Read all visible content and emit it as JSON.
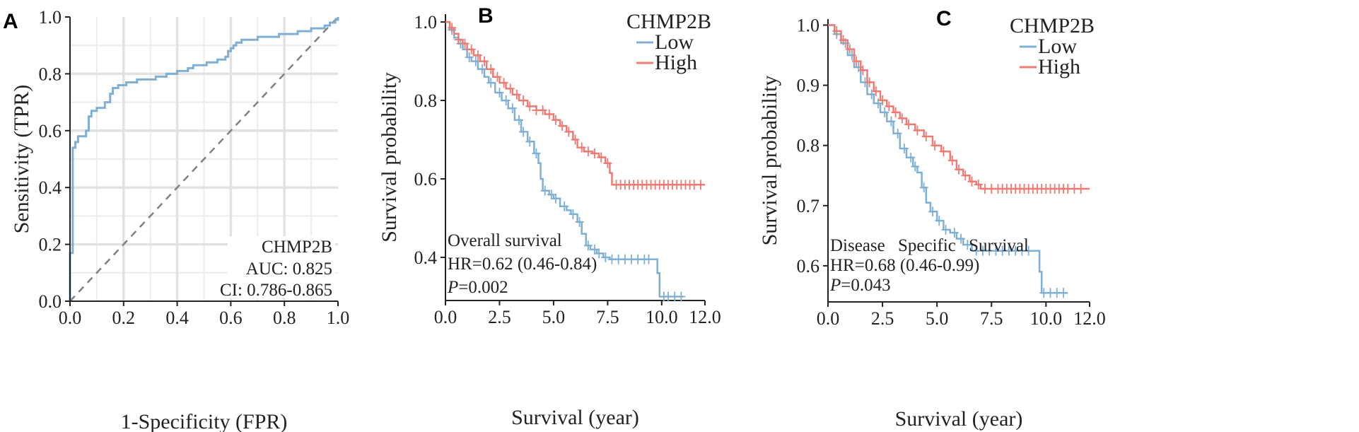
{
  "chart_data": [
    {
      "panel": "A",
      "type": "line",
      "xlabel": "1-Specificity (FPR)",
      "ylabel": "Sensitivity (TPR)",
      "xlim": [
        0,
        1
      ],
      "ylim": [
        0,
        1
      ],
      "xticks": [
        "0.0",
        "0.2",
        "0.4",
        "0.6",
        "0.8",
        "1.0"
      ],
      "yticks": [
        "0.0",
        "0.2",
        "0.4",
        "0.6",
        "0.8",
        "1.0"
      ],
      "grid": true,
      "annotations": [
        "CHMP2B",
        "AUC: 0.825",
        "CI: 0.786-0.865"
      ],
      "colors": {
        "roc": "#7fb0d3",
        "diagonal": "#808080"
      },
      "series": [
        {
          "values": [
            [
              0.0,
              0.0
            ],
            [
              0.0,
              0.17
            ],
            [
              0.01,
              0.17
            ],
            [
              0.01,
              0.54
            ],
            [
              0.02,
              0.54
            ],
            [
              0.02,
              0.56
            ],
            [
              0.03,
              0.56
            ],
            [
              0.03,
              0.58
            ],
            [
              0.06,
              0.58
            ],
            [
              0.06,
              0.6
            ],
            [
              0.07,
              0.6
            ],
            [
              0.07,
              0.65
            ],
            [
              0.08,
              0.65
            ],
            [
              0.08,
              0.67
            ],
            [
              0.1,
              0.67
            ],
            [
              0.1,
              0.68
            ],
            [
              0.13,
              0.68
            ],
            [
              0.13,
              0.7
            ],
            [
              0.15,
              0.7
            ],
            [
              0.15,
              0.73
            ],
            [
              0.16,
              0.73
            ],
            [
              0.16,
              0.75
            ],
            [
              0.18,
              0.75
            ],
            [
              0.18,
              0.76
            ],
            [
              0.21,
              0.76
            ],
            [
              0.21,
              0.77
            ],
            [
              0.25,
              0.77
            ],
            [
              0.25,
              0.78
            ],
            [
              0.32,
              0.78
            ],
            [
              0.32,
              0.79
            ],
            [
              0.36,
              0.79
            ],
            [
              0.36,
              0.8
            ],
            [
              0.4,
              0.8
            ],
            [
              0.4,
              0.81
            ],
            [
              0.44,
              0.81
            ],
            [
              0.44,
              0.82
            ],
            [
              0.46,
              0.82
            ],
            [
              0.46,
              0.83
            ],
            [
              0.51,
              0.83
            ],
            [
              0.51,
              0.84
            ],
            [
              0.55,
              0.84
            ],
            [
              0.55,
              0.85
            ],
            [
              0.58,
              0.85
            ],
            [
              0.58,
              0.86
            ],
            [
              0.59,
              0.86
            ],
            [
              0.59,
              0.88
            ],
            [
              0.6,
              0.88
            ],
            [
              0.6,
              0.89
            ],
            [
              0.61,
              0.89
            ],
            [
              0.61,
              0.9
            ],
            [
              0.62,
              0.9
            ],
            [
              0.62,
              0.91
            ],
            [
              0.64,
              0.91
            ],
            [
              0.64,
              0.92
            ],
            [
              0.7,
              0.92
            ],
            [
              0.7,
              0.93
            ],
            [
              0.78,
              0.93
            ],
            [
              0.78,
              0.94
            ],
            [
              0.85,
              0.94
            ],
            [
              0.85,
              0.95
            ],
            [
              0.9,
              0.95
            ],
            [
              0.9,
              0.96
            ],
            [
              0.95,
              0.96
            ],
            [
              0.95,
              0.97
            ],
            [
              0.97,
              0.97
            ],
            [
              0.97,
              0.98
            ],
            [
              0.99,
              0.98
            ],
            [
              0.99,
              0.99
            ],
            [
              1.0,
              0.99
            ],
            [
              1.0,
              1.0
            ]
          ]
        }
      ]
    },
    {
      "panel": "B",
      "type": "line",
      "xlabel": "Survival (year)",
      "ylabel": "Survival probability",
      "xlim": [
        0,
        12
      ],
      "ylim": [
        0.29,
        1.02
      ],
      "xticks": [
        "0.0",
        "2.5",
        "5.0",
        "7.5",
        "10.0",
        "12.0"
      ],
      "yticks": [
        "0.4",
        "0.6",
        "0.8",
        "1.0"
      ],
      "legend": {
        "title": "CHMP2B",
        "position": "top-right"
      },
      "annotations": [
        "Overall survival",
        "HR=0.62 (0.46-0.84)",
        "P=0.002"
      ],
      "series": [
        {
          "name": "Low",
          "color": "#7fb0d3",
          "values": [
            [
              0,
              1.0
            ],
            [
              0.2,
              0.98
            ],
            [
              0.4,
              0.96
            ],
            [
              0.6,
              0.945
            ],
            [
              0.8,
              0.93
            ],
            [
              1.0,
              0.91
            ],
            [
              1.2,
              0.9
            ],
            [
              1.5,
              0.88
            ],
            [
              1.8,
              0.86
            ],
            [
              2.0,
              0.845
            ],
            [
              2.3,
              0.82
            ],
            [
              2.6,
              0.8
            ],
            [
              2.9,
              0.78
            ],
            [
              3.2,
              0.75
            ],
            [
              3.5,
              0.72
            ],
            [
              3.8,
              0.695
            ],
            [
              4.1,
              0.665
            ],
            [
              4.3,
              0.64
            ],
            [
              4.4,
              0.6
            ],
            [
              4.5,
              0.57
            ],
            [
              4.8,
              0.56
            ],
            [
              5.0,
              0.55
            ],
            [
              5.3,
              0.53
            ],
            [
              5.6,
              0.52
            ],
            [
              5.8,
              0.51
            ],
            [
              6.1,
              0.49
            ],
            [
              6.3,
              0.46
            ],
            [
              6.5,
              0.43
            ],
            [
              6.7,
              0.42
            ],
            [
              7.0,
              0.41
            ],
            [
              7.3,
              0.4
            ],
            [
              7.6,
              0.395
            ],
            [
              9.5,
              0.395
            ],
            [
              9.8,
              0.36
            ],
            [
              9.9,
              0.3
            ],
            [
              11.0,
              0.3
            ]
          ],
          "censor_x": [
            0.3,
            0.7,
            1.1,
            1.4,
            1.7,
            2.1,
            2.5,
            2.8,
            3.1,
            3.4,
            3.6,
            3.9,
            4.2,
            4.6,
            4.9,
            5.1,
            5.5,
            5.9,
            6.2,
            6.6,
            6.9,
            7.1,
            7.4,
            7.7,
            8.0,
            8.3,
            8.6,
            8.9,
            9.2,
            9.4,
            10.1,
            10.3,
            10.6,
            10.9
          ]
        },
        {
          "name": "High",
          "color": "#ee7b73",
          "values": [
            [
              0,
              1.0
            ],
            [
              0.2,
              0.985
            ],
            [
              0.4,
              0.97
            ],
            [
              0.6,
              0.955
            ],
            [
              0.8,
              0.945
            ],
            [
              1.0,
              0.93
            ],
            [
              1.3,
              0.915
            ],
            [
              1.6,
              0.9
            ],
            [
              1.9,
              0.88
            ],
            [
              2.2,
              0.86
            ],
            [
              2.5,
              0.845
            ],
            [
              2.8,
              0.83
            ],
            [
              3.1,
              0.815
            ],
            [
              3.4,
              0.8
            ],
            [
              3.8,
              0.785
            ],
            [
              4.2,
              0.775
            ],
            [
              4.6,
              0.765
            ],
            [
              5.0,
              0.75
            ],
            [
              5.3,
              0.735
            ],
            [
              5.6,
              0.72
            ],
            [
              5.9,
              0.7
            ],
            [
              6.1,
              0.68
            ],
            [
              6.4,
              0.67
            ],
            [
              6.8,
              0.665
            ],
            [
              7.1,
              0.655
            ],
            [
              7.4,
              0.64
            ],
            [
              7.6,
              0.615
            ],
            [
              7.7,
              0.585
            ],
            [
              12.0,
              0.585
            ]
          ],
          "censor_x": [
            0.3,
            0.6,
            0.9,
            1.2,
            1.5,
            1.8,
            2.1,
            2.4,
            2.7,
            3.0,
            3.3,
            3.6,
            3.9,
            4.2,
            4.5,
            4.8,
            5.1,
            5.4,
            5.7,
            6.0,
            6.3,
            6.6,
            6.9,
            7.2,
            7.5,
            7.9,
            8.1,
            8.3,
            8.5,
            8.7,
            8.9,
            9.1,
            9.3,
            9.5,
            9.7,
            9.9,
            10.1,
            10.3,
            10.5,
            10.7,
            10.9,
            11.1,
            11.3,
            11.5,
            11.8
          ]
        }
      ]
    },
    {
      "panel": "C",
      "type": "line",
      "xlabel": "Survival (year)",
      "ylabel": "Survival probability",
      "xlim": [
        0,
        12
      ],
      "ylim": [
        0.54,
        1.01
      ],
      "xticks": [
        "0.0",
        "2.5",
        "5.0",
        "7.5",
        "10.0",
        "12.0"
      ],
      "yticks": [
        "0.6",
        "0.7",
        "0.8",
        "0.9",
        "1.0"
      ],
      "legend": {
        "title": "CHMP2B",
        "position": "top-right"
      },
      "annotations": [
        "Disease Specific Survival",
        "HR=0.68 (0.46-0.99)",
        "P=0.043"
      ],
      "series": [
        {
          "name": "Low",
          "color": "#7fb0d3",
          "values": [
            [
              0,
              1.0
            ],
            [
              0.3,
              0.985
            ],
            [
              0.6,
              0.97
            ],
            [
              0.9,
              0.95
            ],
            [
              1.2,
              0.93
            ],
            [
              1.5,
              0.905
            ],
            [
              1.8,
              0.885
            ],
            [
              2.1,
              0.87
            ],
            [
              2.4,
              0.855
            ],
            [
              2.7,
              0.84
            ],
            [
              3.0,
              0.82
            ],
            [
              3.3,
              0.795
            ],
            [
              3.6,
              0.78
            ],
            [
              3.9,
              0.765
            ],
            [
              4.1,
              0.755
            ],
            [
              4.3,
              0.73
            ],
            [
              4.5,
              0.705
            ],
            [
              4.7,
              0.69
            ],
            [
              5.0,
              0.675
            ],
            [
              5.3,
              0.66
            ],
            [
              5.6,
              0.655
            ],
            [
              5.9,
              0.645
            ],
            [
              6.2,
              0.635
            ],
            [
              6.6,
              0.625
            ],
            [
              9.6,
              0.625
            ],
            [
              9.7,
              0.59
            ],
            [
              9.8,
              0.555
            ],
            [
              11.0,
              0.555
            ]
          ],
          "censor_x": [
            0.4,
            0.8,
            1.1,
            1.4,
            1.7,
            2.0,
            2.3,
            2.6,
            2.9,
            3.2,
            3.5,
            3.8,
            4.0,
            4.4,
            4.8,
            5.1,
            5.4,
            5.8,
            6.1,
            6.4,
            6.8,
            7.1,
            7.4,
            7.7,
            8.0,
            8.3,
            8.6,
            8.9,
            9.2,
            9.9,
            10.2,
            10.5,
            10.8
          ]
        },
        {
          "name": "High",
          "color": "#ee7b73",
          "values": [
            [
              0,
              1.0
            ],
            [
              0.3,
              0.99
            ],
            [
              0.6,
              0.975
            ],
            [
              0.9,
              0.96
            ],
            [
              1.2,
              0.94
            ],
            [
              1.5,
              0.925
            ],
            [
              1.8,
              0.905
            ],
            [
              2.1,
              0.89
            ],
            [
              2.4,
              0.875
            ],
            [
              2.7,
              0.865
            ],
            [
              3.0,
              0.855
            ],
            [
              3.3,
              0.845
            ],
            [
              3.6,
              0.835
            ],
            [
              4.0,
              0.825
            ],
            [
              4.4,
              0.815
            ],
            [
              4.8,
              0.8
            ],
            [
              5.2,
              0.79
            ],
            [
              5.6,
              0.775
            ],
            [
              5.9,
              0.76
            ],
            [
              6.2,
              0.75
            ],
            [
              6.5,
              0.74
            ],
            [
              6.8,
              0.735
            ],
            [
              7.0,
              0.728
            ],
            [
              12.0,
              0.728
            ]
          ],
          "censor_x": [
            0.4,
            0.7,
            1.0,
            1.3,
            1.6,
            1.9,
            2.2,
            2.5,
            2.8,
            3.1,
            3.4,
            3.7,
            4.1,
            4.5,
            4.9,
            5.3,
            5.7,
            6.0,
            6.3,
            6.6,
            6.9,
            7.2,
            7.5,
            7.8,
            8.0,
            8.2,
            8.4,
            8.6,
            8.8,
            9.0,
            9.2,
            9.4,
            9.6,
            9.8,
            10.0,
            10.2,
            10.4,
            10.6,
            10.8,
            11.0,
            11.3,
            11.6
          ]
        }
      ]
    }
  ],
  "panels": {
    "A": {
      "label": "A"
    },
    "B": {
      "label": "B"
    },
    "C": {
      "label": "C"
    }
  }
}
